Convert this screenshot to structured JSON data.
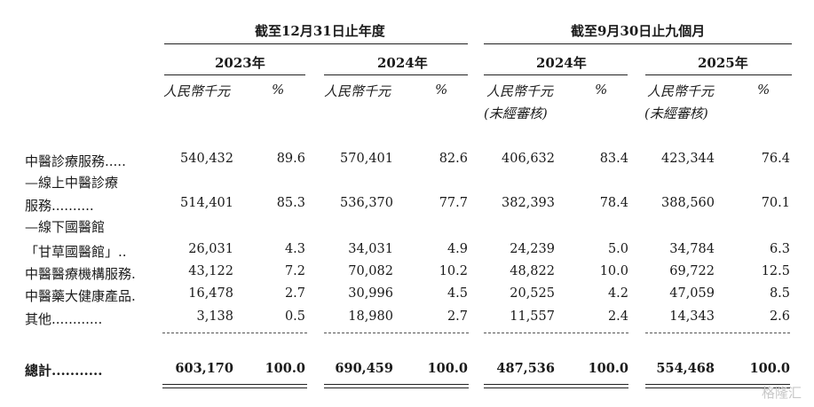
{
  "header": {
    "group_year": "截至12月31日止年度",
    "group_nine": "截至9月30日止九個月",
    "years": [
      "2023年",
      "2024年",
      "2024年",
      "2025年"
    ],
    "unit_rmb": "人民幣千元",
    "unit_pct": "%",
    "unaudited": "(未經審核)"
  },
  "rows": [
    {
      "label": "中醫診療服務.....",
      "v": [
        "540,432",
        "89.6",
        "570,401",
        "82.6",
        "406,632",
        "83.4",
        "423,344",
        "76.4"
      ]
    },
    {
      "label": "—線上中醫診療"
    },
    {
      "label": "服務..........",
      "v": [
        "514,401",
        "85.3",
        "536,370",
        "77.7",
        "382,393",
        "78.4",
        "388,560",
        "70.1"
      ]
    },
    {
      "label": "—線下國醫館"
    },
    {
      "label": "「甘草國醫館」..",
      "v": [
        "26,031",
        "4.3",
        "34,031",
        "4.9",
        "24,239",
        "5.0",
        "34,784",
        "6.3"
      ]
    },
    {
      "label": "中醫醫療機構服務.",
      "v": [
        "43,122",
        "7.2",
        "70,082",
        "10.2",
        "48,822",
        "10.0",
        "69,722",
        "12.5"
      ]
    },
    {
      "label": "中醫藥大健康產品.",
      "v": [
        "16,478",
        "2.7",
        "30,996",
        "4.5",
        "20,525",
        "4.2",
        "47,059",
        "8.5"
      ]
    },
    {
      "label": "其他............",
      "v": [
        "3,138",
        "0.5",
        "18,980",
        "2.7",
        "11,557",
        "2.4",
        "14,343",
        "2.6"
      ]
    }
  ],
  "total": {
    "label": "總計...........",
    "v": [
      "603,170",
      "100.0",
      "690,459",
      "100.0",
      "487,536",
      "100.0",
      "554,468",
      "100.0"
    ]
  },
  "watermark": "格隆汇"
}
